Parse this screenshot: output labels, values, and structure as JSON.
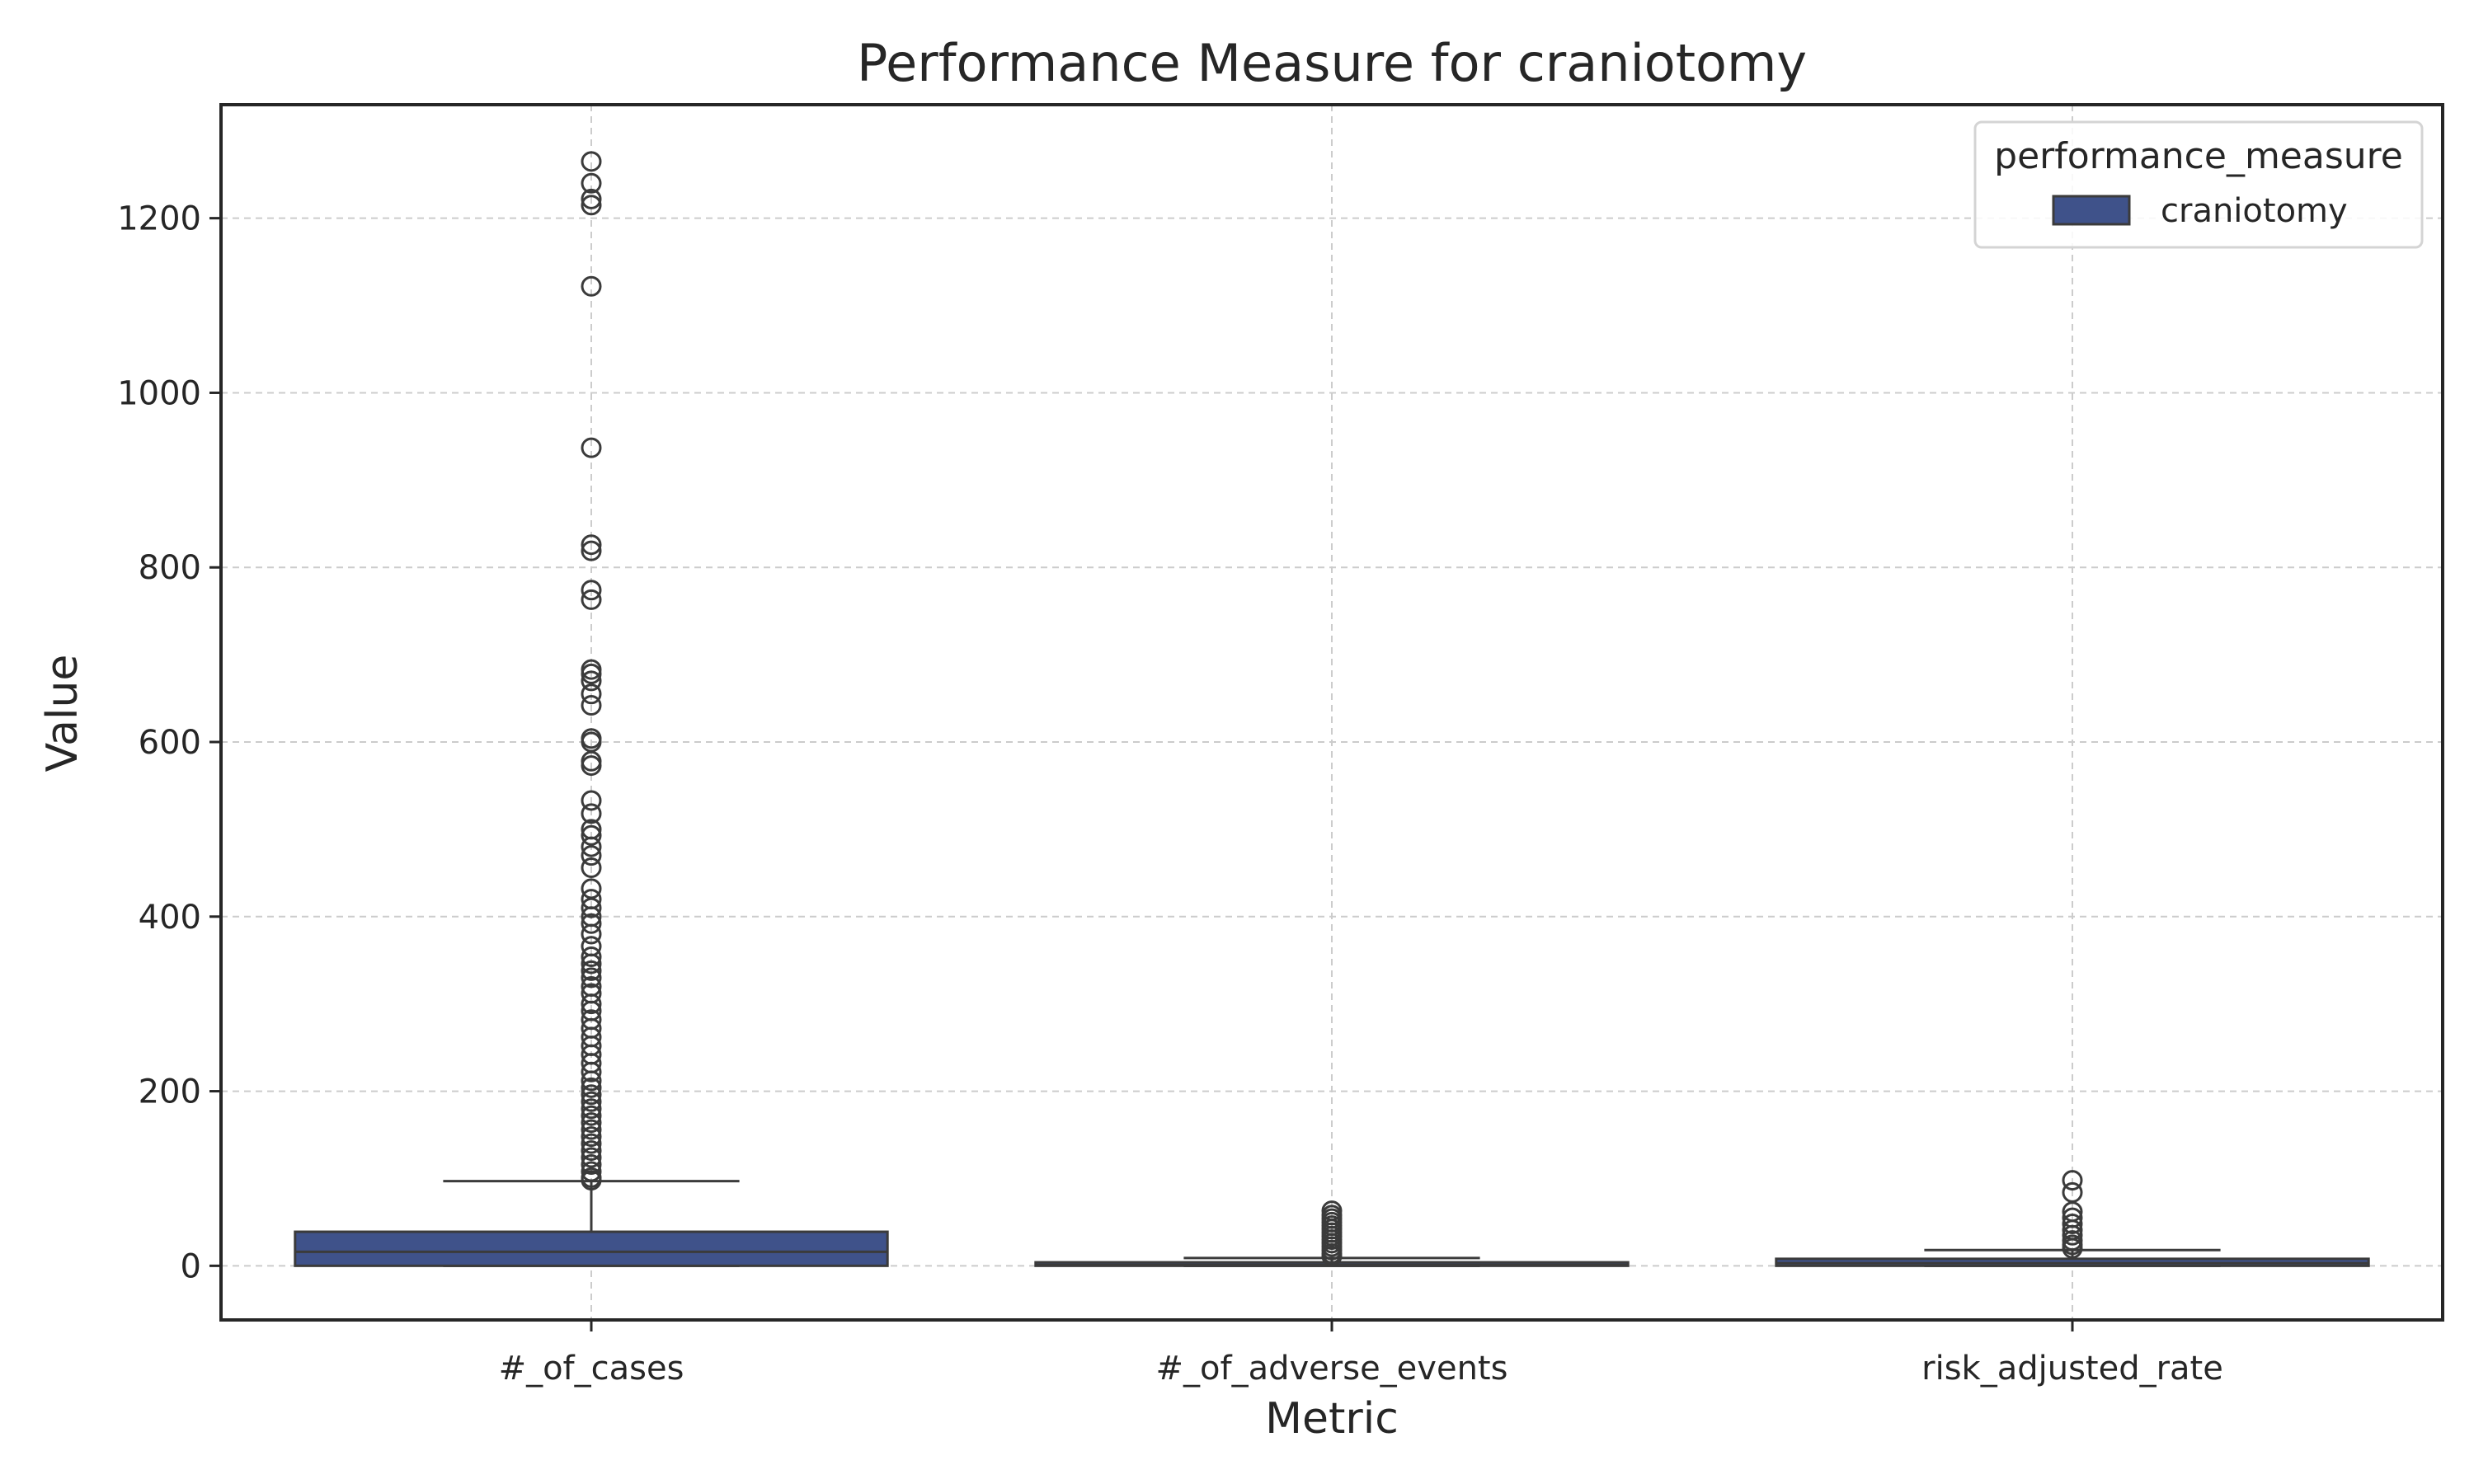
{
  "chart_data": {
    "type": "box",
    "title": "Performance Measure for craniotomy",
    "xlabel": "Metric",
    "ylabel": "Value",
    "ylim": [
      -62,
      1330
    ],
    "yticks": [
      0,
      200,
      400,
      600,
      800,
      1000,
      1200
    ],
    "grid": true,
    "legend": {
      "title": "performance_measure",
      "placement": "top-right",
      "entries": [
        {
          "label": "craniotomy",
          "color": "#3f528a"
        }
      ]
    },
    "categories": [
      "#_of_cases",
      "#_of_adverse_events",
      "risk_adjusted_rate"
    ],
    "series": [
      {
        "name": "craniotomy",
        "color": "#3f528a",
        "boxes": [
          {
            "category": "#_of_cases",
            "whisker_low": 0,
            "q1": 0,
            "median": 16,
            "q3": 39,
            "whisker_high": 97,
            "outliers": [
              1265,
              1240,
              1222,
              1215,
              1122,
              937,
              826,
              819,
              774,
              763,
              683,
              678,
              670,
              655,
              642,
              604,
              600,
              578,
              573,
              533,
              518,
              500,
              493,
              480,
              470,
              456,
              432,
              420,
              410,
              400,
              392,
              380,
              366,
              354,
              346,
              338,
              330,
              320,
              312,
              300,
              292,
              282,
              272,
              262,
              252,
              242,
              232,
              222,
              212,
              204,
              196,
              188,
              180,
              172,
              164,
              156,
              148,
              140,
              132,
              124,
              116,
              108,
              101,
              98
            ]
          },
          {
            "category": "#_of_adverse_events",
            "whisker_low": 0,
            "q1": 0,
            "median": 1,
            "q3": 4,
            "whisker_high": 9,
            "outliers": [
              63,
              58,
              54,
              50,
              46,
              42,
              38,
              34,
              30,
              26,
              22,
              18,
              14,
              11
            ]
          },
          {
            "category": "risk_adjusted_rate",
            "whisker_low": 0,
            "q1": 0,
            "median": 3,
            "q3": 8,
            "whisker_high": 18,
            "outliers": [
              98,
              84,
              62,
              55,
              48,
              41,
              35,
              29,
              24,
              20
            ]
          }
        ]
      }
    ]
  }
}
